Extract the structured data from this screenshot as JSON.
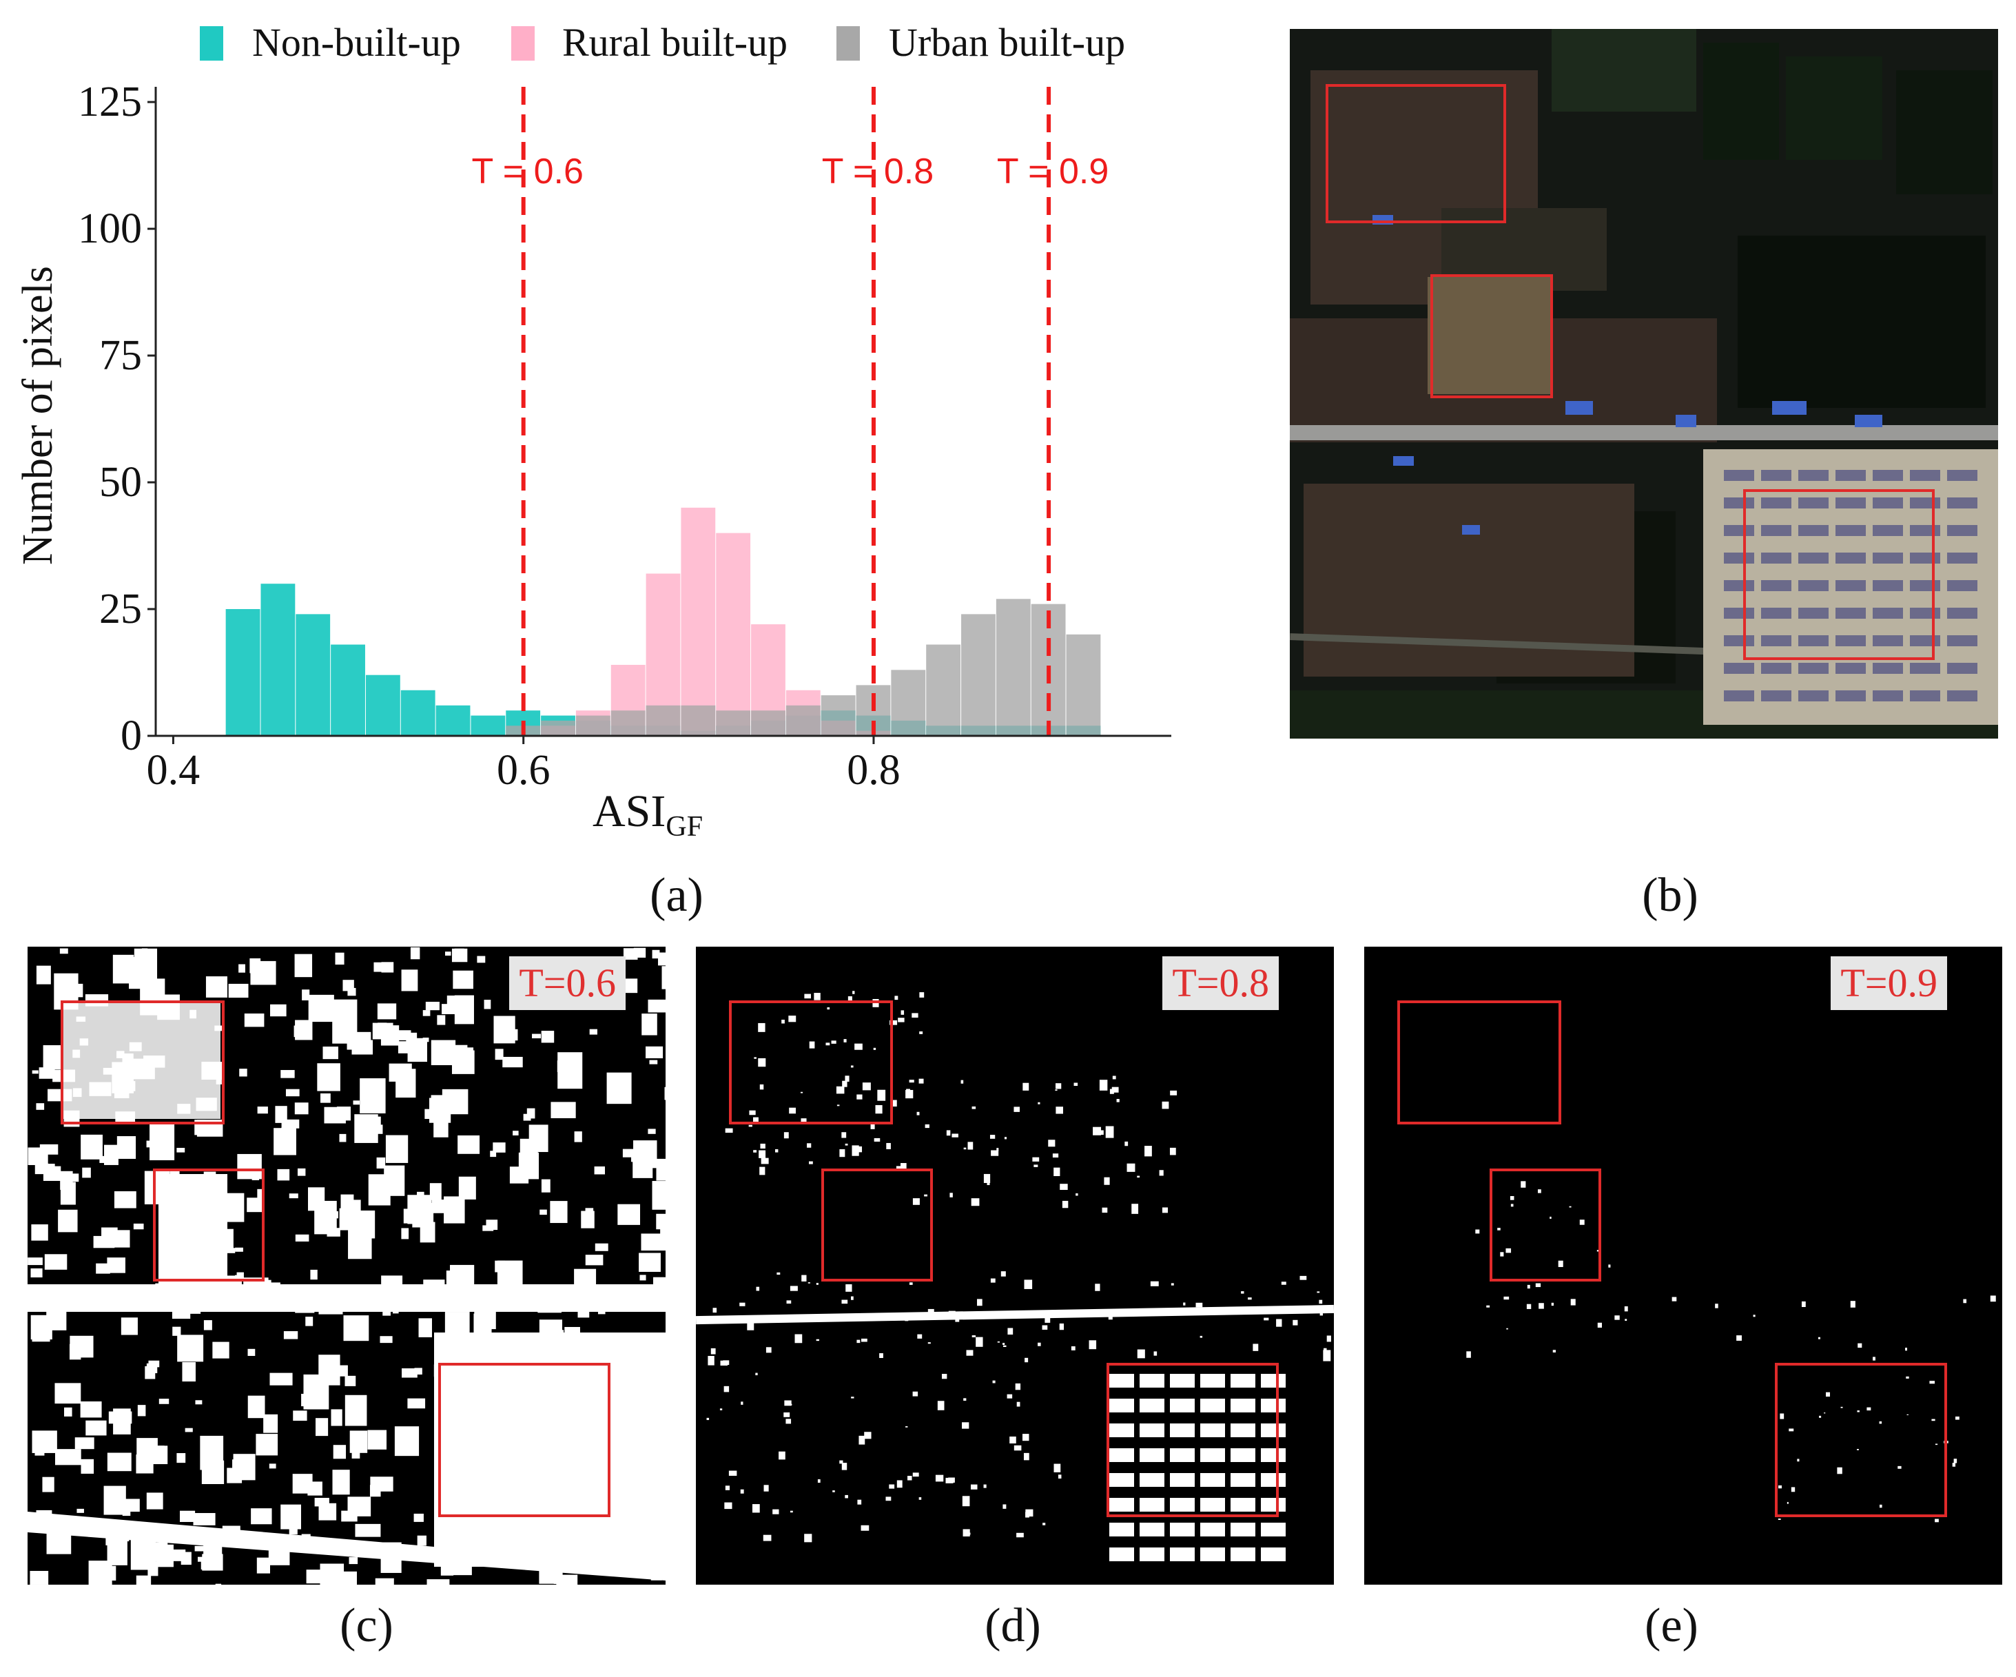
{
  "colors": {
    "non_built": "#20c9c2",
    "rural": "#ffafc8",
    "urban": "#a8a8a8",
    "threshold": "#ee1c1c",
    "box": "#e02a2a"
  },
  "legend": [
    {
      "label": "Non-built-up",
      "color": "#20c9c2"
    },
    {
      "label": "Rural built-up",
      "color": "#ffafc8"
    },
    {
      "label": "Urban built-up",
      "color": "#a8a8a8"
    }
  ],
  "chart_data": {
    "type": "bar",
    "xlabel_main": "ASI",
    "xlabel_sub": "GF",
    "ylabel": "Number of pixels",
    "xlim": [
      0.39,
      0.97
    ],
    "ylim": [
      0,
      128
    ],
    "xticks": [
      0.4,
      0.6,
      0.8
    ],
    "yticks": [
      0,
      25,
      50,
      75,
      100,
      125
    ],
    "thresholds": [
      {
        "value": 0.6,
        "label": "T = 0.6"
      },
      {
        "value": 0.8,
        "label": "T = 0.8"
      },
      {
        "value": 0.9,
        "label": "T = 0.9"
      }
    ],
    "series": [
      {
        "name": "Non-built-up",
        "color": "#20c9c2",
        "x": [
          0.42,
          0.44,
          0.46,
          0.48,
          0.5,
          0.52,
          0.54,
          0.56,
          0.58,
          0.6,
          0.62,
          0.64,
          0.66,
          0.68,
          0.7,
          0.72,
          0.74,
          0.76,
          0.78,
          0.8,
          0.82,
          0.84,
          0.86,
          0.88,
          0.9,
          0.92,
          0.94
        ],
        "values": [
          0,
          25,
          30,
          24,
          18,
          12,
          9,
          6,
          4,
          5,
          4,
          3,
          2,
          2,
          1,
          2,
          3,
          4,
          5,
          4,
          3,
          2,
          2,
          2,
          2,
          2,
          0
        ]
      },
      {
        "name": "Rural built-up",
        "color": "#ffafc8",
        "x": [
          0.62,
          0.64,
          0.66,
          0.68,
          0.7,
          0.72,
          0.74,
          0.76,
          0.78,
          0.8,
          0.82
        ],
        "values": [
          2,
          5,
          14,
          32,
          45,
          40,
          22,
          9,
          3,
          1,
          0
        ]
      },
      {
        "name": "Urban built-up",
        "color": "#a8a8a8",
        "x": [
          0.6,
          0.62,
          0.64,
          0.66,
          0.68,
          0.7,
          0.72,
          0.74,
          0.76,
          0.78,
          0.8,
          0.82,
          0.84,
          0.86,
          0.88,
          0.9,
          0.92,
          0.94
        ],
        "values": [
          2,
          3,
          4,
          5,
          6,
          6,
          5,
          5,
          6,
          8,
          10,
          13,
          18,
          24,
          27,
          26,
          20,
          0
        ]
      }
    ]
  },
  "panels": {
    "a": "(a)",
    "b": "(b)",
    "c": "(c)",
    "d": "(d)",
    "e": "(e)"
  },
  "maps": {
    "c_badge": "T=0.6",
    "d_badge": "T=0.8",
    "e_badge": "T=0.9"
  }
}
